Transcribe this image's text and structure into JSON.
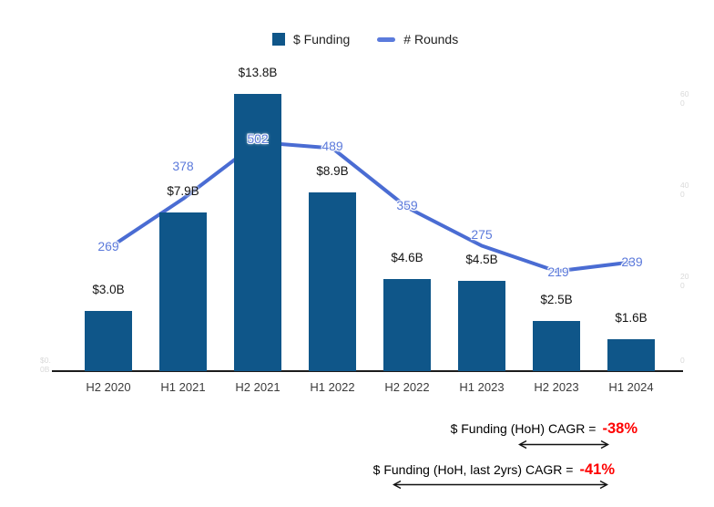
{
  "colors": {
    "bar": "#0F5689",
    "line": "#4A6CD3",
    "line_label": "#5C7ADB",
    "annotation_value": "#FE0000",
    "axis": "#1C1C1C",
    "faint_tick": "#D9D9D9"
  },
  "legend": {
    "items": [
      {
        "label": "$ Funding",
        "swatch": "square",
        "color": "#0F5689"
      },
      {
        "label": "# Rounds",
        "swatch": "line",
        "color": "#5B7BDC"
      }
    ]
  },
  "chart_data": {
    "type": "bar",
    "title": "",
    "legend_position": "top",
    "grid": false,
    "categories": [
      "H2 2020",
      "H1 2021",
      "H2 2021",
      "H1 2022",
      "H2 2022",
      "H1 2023",
      "H2 2023",
      "H1 2024"
    ],
    "series": [
      {
        "name": "$ Funding",
        "type": "bar",
        "axis": "left",
        "values": [
          3.0,
          7.9,
          13.8,
          8.9,
          4.6,
          4.5,
          2.5,
          1.6
        ],
        "labels": [
          "$3.0B",
          "$7.9B",
          "$13.8B",
          "$8.9B",
          "$4.6B",
          "$4.5B",
          "$2.5B",
          "$1.6B"
        ],
        "unit": "billions USD"
      },
      {
        "name": "# Rounds",
        "type": "line",
        "axis": "right",
        "values": [
          269,
          378,
          502,
          489,
          359,
          275,
          219,
          239
        ],
        "labels": [
          "269",
          "378",
          "502",
          "489",
          "359",
          "275",
          "219",
          "239"
        ]
      }
    ],
    "left_axis": {
      "ylim": [
        0,
        15
      ],
      "ticks": [
        "$0.0B"
      ]
    },
    "right_axis": {
      "ylim": [
        0,
        660
      ],
      "ticks": [
        "600",
        "400",
        "200",
        "0"
      ]
    }
  },
  "annotations": [
    {
      "label": "$ Funding (HoH) CAGR =",
      "value": "-38%"
    },
    {
      "label": "$ Funding (HoH, last 2yrs) CAGR =",
      "value": "-41%"
    }
  ]
}
